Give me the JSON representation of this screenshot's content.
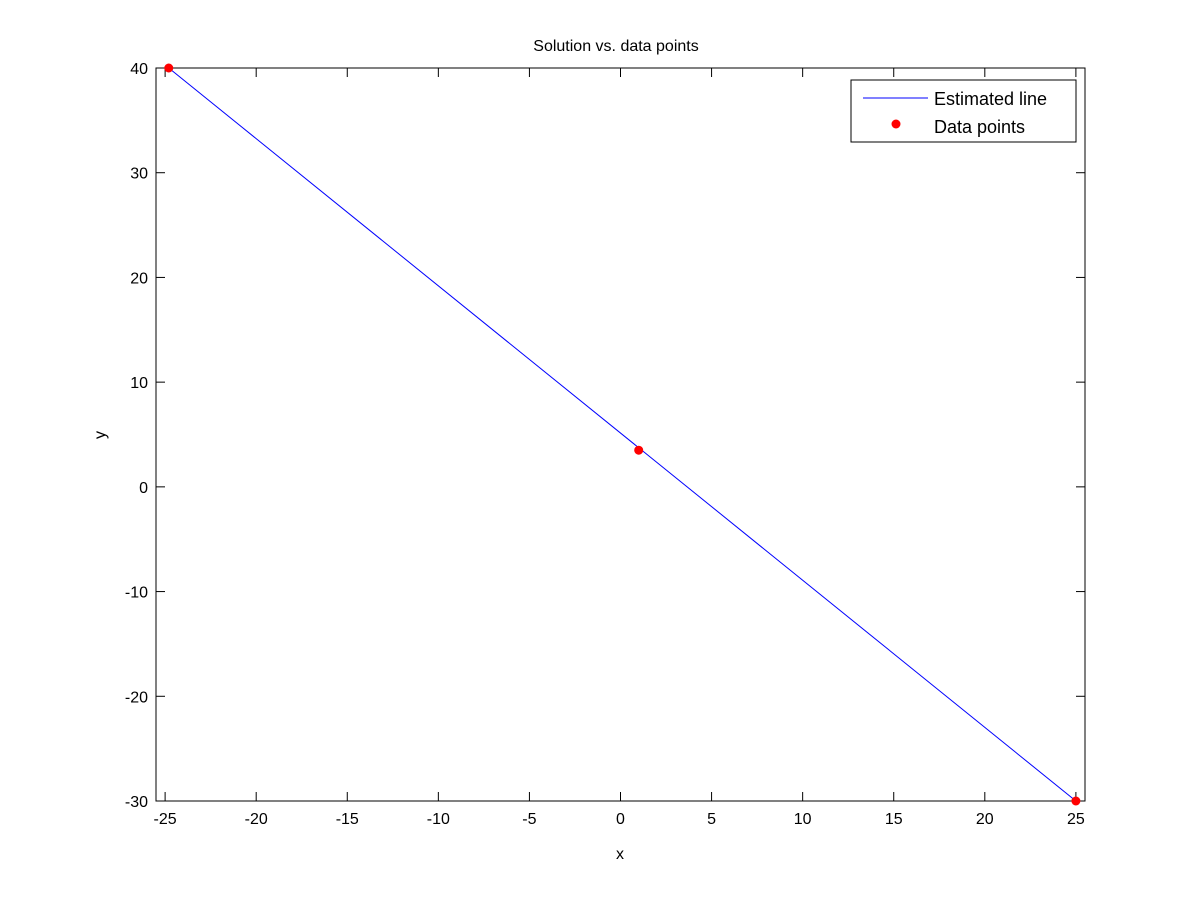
{
  "chart_data": {
    "type": "line",
    "title": "Solution vs. data points",
    "xlabel": "x",
    "ylabel": "y",
    "xlim": [
      -25.5,
      25.5
    ],
    "ylim": [
      -30,
      40
    ],
    "xticks": [
      "-25",
      "-20",
      "-15",
      "-10",
      "-5",
      "0",
      "5",
      "10",
      "15",
      "20",
      "25"
    ],
    "yticks": [
      "-30",
      "-20",
      "-10",
      "0",
      "10",
      "20",
      "30",
      "40"
    ],
    "grid": false,
    "legend_position": "top-right",
    "series": [
      {
        "name": "Estimated line",
        "style": "line",
        "color": "#0000ff",
        "x": [
          -24.8,
          25
        ],
        "y": [
          40,
          -30
        ]
      },
      {
        "name": "Data points",
        "style": "markers",
        "color": "#ff0000",
        "x": [
          -24.8,
          1,
          25
        ],
        "y": [
          40,
          3.5,
          -30
        ]
      }
    ]
  }
}
